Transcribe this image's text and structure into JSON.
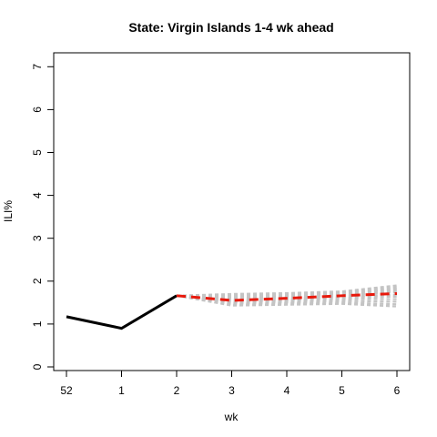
{
  "chart_data": {
    "type": "line",
    "title": "State: Virgin Islands 1-4 wk ahead",
    "xlabel": "wk",
    "ylabel": "ILI%",
    "ylim": [
      0,
      7
    ],
    "x_ticks": [
      "52",
      "1",
      "2",
      "3",
      "4",
      "5",
      "6"
    ],
    "y_ticks": [
      0,
      1,
      2,
      3,
      4,
      5,
      6,
      7
    ],
    "grid": false,
    "legend": "none",
    "series": [
      {
        "role": "observed",
        "color": "#000000",
        "style": "solid",
        "x": [
          "52",
          "1",
          "2"
        ],
        "values": [
          1.17,
          0.9,
          1.66
        ]
      },
      {
        "role": "forecast-mean",
        "color": "#e8190c",
        "style": "dashed",
        "x": [
          "2",
          "3",
          "4",
          "5",
          "6"
        ],
        "values": [
          1.66,
          1.55,
          1.6,
          1.66,
          1.71
        ]
      }
    ],
    "ensemble": {
      "color": "#c4c4c4",
      "style": "dashed",
      "x": [
        "2",
        "3",
        "4",
        "5",
        "6"
      ],
      "members": [
        [
          1.66,
          1.7,
          1.72,
          1.76,
          1.9
        ],
        [
          1.66,
          1.68,
          1.7,
          1.74,
          1.86
        ],
        [
          1.66,
          1.66,
          1.68,
          1.72,
          1.82
        ],
        [
          1.66,
          1.63,
          1.66,
          1.7,
          1.78
        ],
        [
          1.66,
          1.6,
          1.63,
          1.67,
          1.74
        ],
        [
          1.66,
          1.57,
          1.6,
          1.64,
          1.68
        ],
        [
          1.66,
          1.54,
          1.57,
          1.61,
          1.64
        ],
        [
          1.66,
          1.51,
          1.54,
          1.58,
          1.58
        ],
        [
          1.66,
          1.48,
          1.51,
          1.54,
          1.52
        ],
        [
          1.66,
          1.45,
          1.48,
          1.5,
          1.46
        ],
        [
          1.66,
          1.43,
          1.45,
          1.47,
          1.41
        ]
      ]
    }
  }
}
